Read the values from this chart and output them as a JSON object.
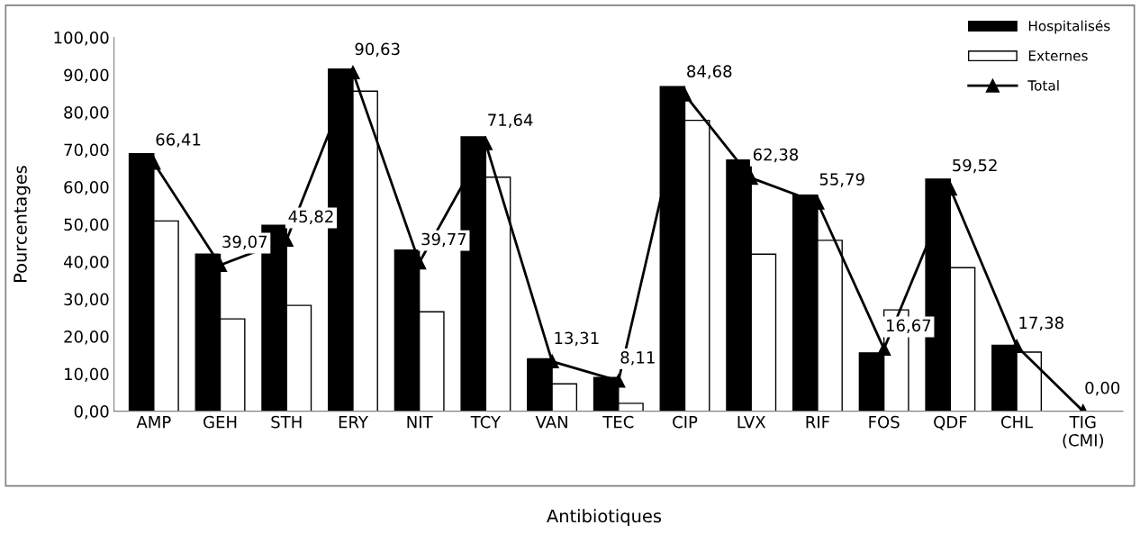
{
  "chart_data": {
    "type": "bar",
    "xlabel": "Antibiotiques",
    "ylabel": "Pourcentages",
    "categories": [
      "AMP",
      "GEH",
      "STH",
      "ERY",
      "NIT",
      "TCY",
      "VAN",
      "TEC",
      "CIP",
      "LVX",
      "RIF",
      "FOS",
      "QDF",
      "CHL",
      "TIG\n(CMI)"
    ],
    "series": [
      {
        "name": "Hospitalisés",
        "color": "#000000",
        "values": [
          68.9,
          42.0,
          49.7,
          91.5,
          43.1,
          73.4,
          14.0,
          9.0,
          86.8,
          67.2,
          57.8,
          15.6,
          62.1,
          17.6,
          0
        ]
      },
      {
        "name": "Externes",
        "color": "#ffffff",
        "values": [
          50.9,
          24.7,
          28.3,
          85.6,
          26.6,
          62.6,
          7.3,
          2.1,
          77.8,
          42.0,
          45.7,
          27.1,
          38.4,
          15.8,
          0
        ]
      },
      {
        "name": "Total",
        "type": "line",
        "color": "#000000",
        "marker": "triangle",
        "values": [
          66.41,
          39.07,
          45.82,
          90.63,
          39.77,
          71.64,
          13.31,
          8.11,
          84.68,
          62.38,
          55.79,
          16.67,
          59.52,
          17.38,
          0.0
        ],
        "value_labels": [
          "66,41",
          "39,07",
          "45,82",
          "90,63",
          "39,77",
          "71,64",
          "13,31",
          "8,11",
          "84,68",
          "62,38",
          "55,79",
          "16,67",
          "59,52",
          "17,38",
          "0,00"
        ]
      }
    ],
    "ylim": [
      0,
      100
    ],
    "yticks": [
      {
        "value": 0,
        "label": "0,00"
      },
      {
        "value": 10,
        "label": "10,00"
      },
      {
        "value": 20,
        "label": "20,00"
      },
      {
        "value": 30,
        "label": "30,00"
      },
      {
        "value": 40,
        "label": "40,00"
      },
      {
        "value": 50,
        "label": "50,00"
      },
      {
        "value": 60,
        "label": "60,00"
      },
      {
        "value": 70,
        "label": "70,00"
      },
      {
        "value": 80,
        "label": "80,00"
      },
      {
        "value": 90,
        "label": "90,00"
      },
      {
        "value": 100,
        "label": "100,00"
      }
    ],
    "grid": false,
    "legend": "top right"
  }
}
